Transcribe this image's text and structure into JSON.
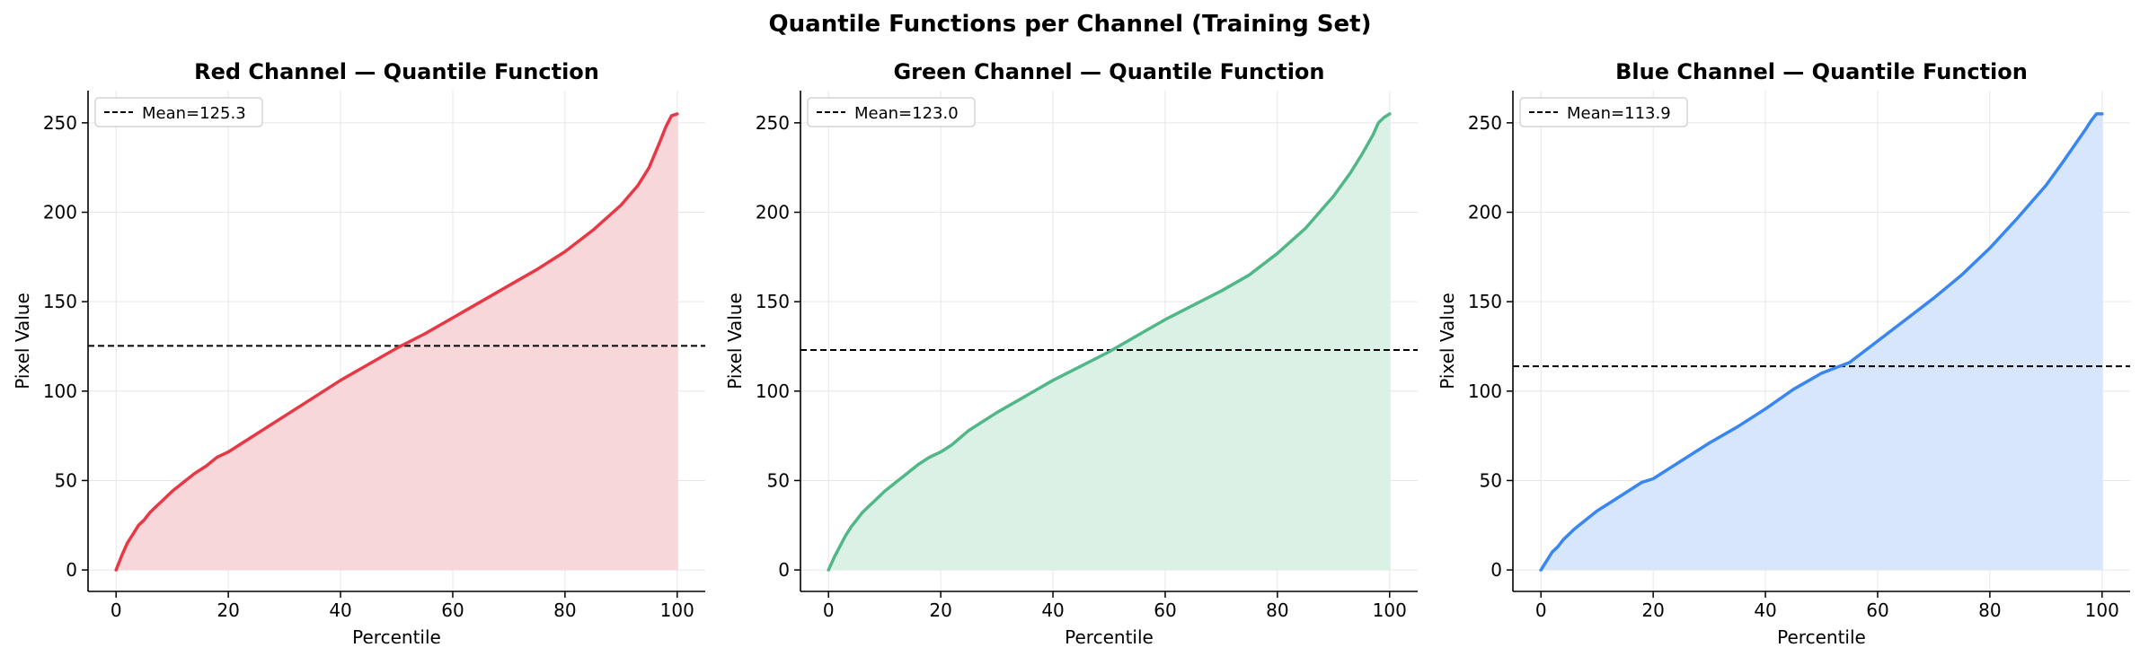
{
  "figure": {
    "suptitle": "Quantile Functions per Channel (Training Set)"
  },
  "chart_data": [
    {
      "type": "area",
      "title": "Red Channel — Quantile Function",
      "xlabel": "Percentile",
      "ylabel": "Pixel Value",
      "xlim": [
        -5,
        105
      ],
      "ylim": [
        -12,
        268
      ],
      "xticks": [
        0,
        20,
        40,
        60,
        80,
        100
      ],
      "yticks": [
        0,
        50,
        100,
        150,
        200,
        250
      ],
      "grid": true,
      "legend_position": "top-left",
      "color": "#e63946",
      "fill_color": "#f8d7da",
      "series": [
        {
          "name": "",
          "x": [
            0,
            1,
            2,
            3,
            4,
            5,
            6,
            7,
            8,
            10,
            12,
            14,
            16,
            18,
            20,
            22,
            25,
            30,
            35,
            40,
            45,
            50,
            55,
            60,
            65,
            70,
            75,
            80,
            85,
            90,
            93,
            95,
            97,
            98,
            99,
            100
          ],
          "y": [
            0,
            8,
            15,
            20,
            25,
            28,
            32,
            35,
            38,
            44,
            49,
            54,
            58,
            63,
            66,
            70,
            76,
            86,
            96,
            106,
            115,
            124,
            132,
            141,
            150,
            159,
            168,
            178,
            190,
            204,
            215,
            225,
            240,
            248,
            254,
            255
          ]
        },
        {
          "name": "Mean=125.3",
          "kind": "hline",
          "y": 125.3,
          "style": "dashed",
          "color": "#000000"
        }
      ]
    },
    {
      "type": "area",
      "title": "Green Channel — Quantile Function",
      "xlabel": "Percentile",
      "ylabel": "Pixel Value",
      "xlim": [
        -5,
        105
      ],
      "ylim": [
        -12,
        268
      ],
      "xticks": [
        0,
        20,
        40,
        60,
        80,
        100
      ],
      "yticks": [
        0,
        50,
        100,
        150,
        200,
        250
      ],
      "grid": true,
      "legend_position": "top-left",
      "color": "#52b788",
      "fill_color": "#dcf1e6",
      "series": [
        {
          "name": "",
          "x": [
            0,
            1,
            2,
            3,
            4,
            5,
            6,
            7,
            8,
            10,
            12,
            14,
            16,
            18,
            20,
            22,
            25,
            30,
            35,
            40,
            45,
            50,
            55,
            60,
            65,
            70,
            75,
            80,
            85,
            90,
            93,
            95,
            97,
            98,
            99,
            100
          ],
          "y": [
            0,
            7,
            13,
            19,
            24,
            28,
            32,
            35,
            38,
            44,
            49,
            54,
            59,
            63,
            66,
            70,
            78,
            88,
            97,
            106,
            114,
            122,
            131,
            140,
            148,
            156,
            165,
            177,
            191,
            209,
            222,
            232,
            243,
            250,
            253,
            255
          ]
        },
        {
          "name": "Mean=123.0",
          "kind": "hline",
          "y": 123.0,
          "style": "dashed",
          "color": "#000000"
        }
      ]
    },
    {
      "type": "area",
      "title": "Blue Channel — Quantile Function",
      "xlabel": "Percentile",
      "ylabel": "Pixel Value",
      "xlim": [
        -5,
        105
      ],
      "ylim": [
        -12,
        268
      ],
      "xticks": [
        0,
        20,
        40,
        60,
        80,
        100
      ],
      "yticks": [
        0,
        50,
        100,
        150,
        200,
        250
      ],
      "grid": true,
      "legend_position": "top-left",
      "color": "#3a86f0",
      "fill_color": "#d8e6fb",
      "series": [
        {
          "name": "",
          "x": [
            0,
            1,
            2,
            3,
            4,
            5,
            6,
            8,
            10,
            12,
            14,
            16,
            18,
            20,
            22,
            25,
            30,
            35,
            40,
            45,
            50,
            55,
            60,
            65,
            70,
            75,
            80,
            85,
            90,
            93,
            95,
            97,
            98,
            99,
            100
          ],
          "y": [
            0,
            5,
            10,
            13,
            17,
            20,
            23,
            28,
            33,
            37,
            41,
            45,
            49,
            51,
            55,
            61,
            71,
            80,
            90,
            101,
            110,
            116,
            128,
            140,
            152,
            165,
            180,
            197,
            215,
            228,
            237,
            246,
            251,
            255,
            255
          ]
        },
        {
          "name": "Mean=113.9",
          "kind": "hline",
          "y": 113.9,
          "style": "dashed",
          "color": "#000000"
        }
      ]
    }
  ]
}
